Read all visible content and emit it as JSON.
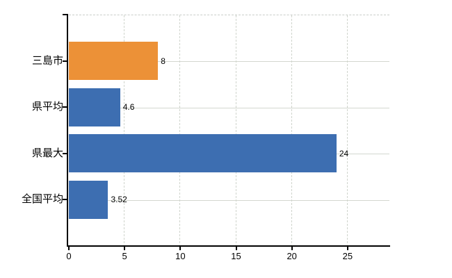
{
  "chart_data": {
    "type": "bar",
    "orientation": "horizontal",
    "categories": [
      "三島市",
      "県平均",
      "県最大",
      "全国平均"
    ],
    "values": [
      8,
      4.6,
      24,
      3.52
    ],
    "value_labels": [
      "8",
      "4.6",
      "24",
      "3.52"
    ],
    "bar_colors": [
      "#EC9137",
      "#3D6EB1",
      "#3D6EB1",
      "#3D6EB1"
    ],
    "highlighted_category": "三島市",
    "x_ticks": [
      0,
      5,
      10,
      15,
      20,
      25
    ],
    "xlim": [
      0,
      28.75
    ],
    "grid": true,
    "legend": false
  },
  "colors": {
    "highlight_bar": "#EC9137",
    "default_bar": "#3D6EB1",
    "gridline": "#CFD4CC",
    "axis": "#000000",
    "text": "#000000",
    "background": "#FFFFFF"
  }
}
